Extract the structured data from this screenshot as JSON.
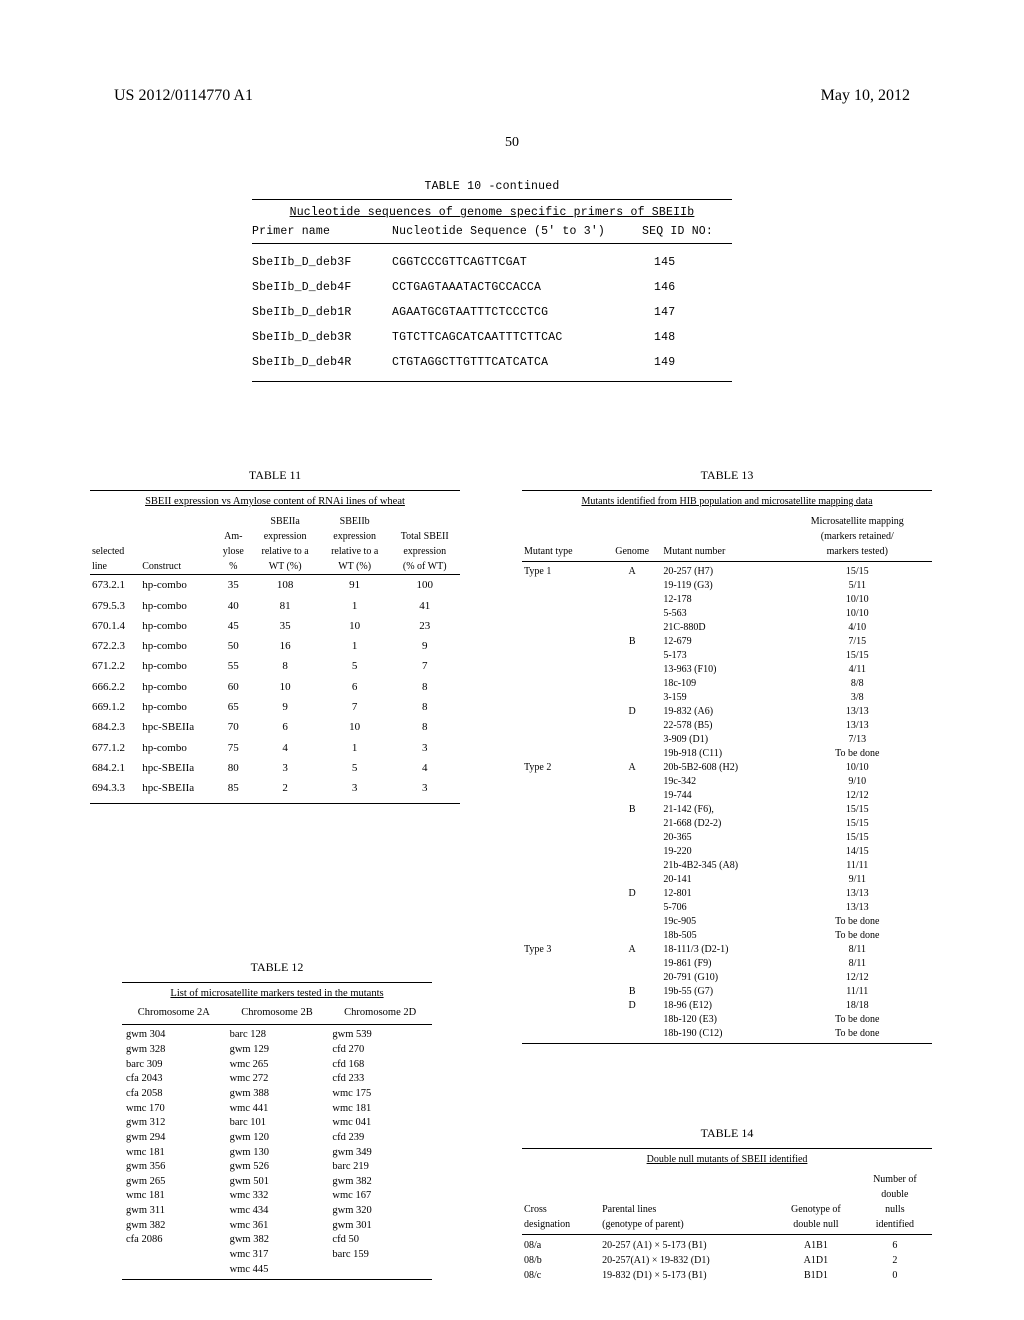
{
  "header": {
    "left": "US 2012/0114770 A1",
    "right": "May 10, 2012",
    "page_number": "50"
  },
  "table10": {
    "title": "TABLE 10 -continued",
    "subtitle": "Nucleotide sequences of genome specific primers of SBEIIb",
    "columns": {
      "c1": "Primer name",
      "c2": "Nucleotide Sequence (5' to 3')",
      "c3": "SEQ ID NO:"
    },
    "rows": [
      {
        "name": "SbeIIb_D_deb3F",
        "seq": "CGGTCCCGTTCAGTTCGAT",
        "id": "145"
      },
      {
        "name": "SbeIIb_D_deb4F",
        "seq": "CCTGAGTAAATACTGCCACCA",
        "id": "146"
      },
      {
        "name": "SbeIIb_D_deb1R",
        "seq": "AGAATGCGTAATTTCTCCCTCG",
        "id": "147"
      },
      {
        "name": "SbeIIb_D_deb3R",
        "seq": "TGTCTTCAGCATCAATTTCTTCAC",
        "id": "148"
      },
      {
        "name": "SbeIIb_D_deb4R",
        "seq": "CTGTAGGCTTGTTTCATCATCA",
        "id": "149"
      }
    ]
  },
  "table11": {
    "caption": "TABLE 11",
    "subtitle": "SBEII expression vs Amylose content of RNAi lines of wheat",
    "header_row1": [
      "",
      "",
      "",
      "SBEIIa",
      "SBEIIb",
      ""
    ],
    "header_row2": [
      "",
      "",
      "Am-",
      "expression",
      "expression",
      "Total SBEII"
    ],
    "header_row3": [
      "selected",
      "",
      "ylose",
      "relative to a",
      "relative to a",
      "expression"
    ],
    "header_row4": [
      "line",
      "Construct",
      "%",
      "WT (%)",
      "WT (%)",
      "(% of WT)"
    ],
    "rows": [
      [
        "673.2.1",
        "hp-combo",
        "35",
        "108",
        "91",
        "100"
      ],
      [
        "679.5.3",
        "hp-combo",
        "40",
        "81",
        "1",
        "41"
      ],
      [
        "670.1.4",
        "hp-combo",
        "45",
        "35",
        "10",
        "23"
      ],
      [
        "672.2.3",
        "hp-combo",
        "50",
        "16",
        "1",
        "9"
      ],
      [
        "671.2.2",
        "hp-combo",
        "55",
        "8",
        "5",
        "7"
      ],
      [
        "666.2.2",
        "hp-combo",
        "60",
        "10",
        "6",
        "8"
      ],
      [
        "669.1.2",
        "hp-combo",
        "65",
        "9",
        "7",
        "8"
      ],
      [
        "684.2.3",
        "hpc-SBEIIa",
        "70",
        "6",
        "10",
        "8"
      ],
      [
        "677.1.2",
        "hp-combo",
        "75",
        "4",
        "1",
        "3"
      ],
      [
        "684.2.1",
        "hpc-SBEIIa",
        "80",
        "3",
        "5",
        "4"
      ],
      [
        "694.3.3",
        "hpc-SBEIIa",
        "85",
        "2",
        "3",
        "3"
      ]
    ]
  },
  "table12": {
    "caption": "TABLE 12",
    "subtitle": "List of microsatellite markers tested in the mutants",
    "columns": [
      "Chromosome 2A",
      "Chromosome 2B",
      "Chromosome 2D"
    ],
    "rows": [
      [
        "gwm 304",
        "barc 128",
        "gwm 539"
      ],
      [
        "gwm 328",
        "gwm 129",
        "cfd 270"
      ],
      [
        "barc 309",
        "wmc 265",
        "cfd 168"
      ],
      [
        "cfa 2043",
        "wmc 272",
        "cfd 233"
      ],
      [
        "cfa 2058",
        "gwm 388",
        "wmc 175"
      ],
      [
        "wmc 170",
        "wmc 441",
        "wmc 181"
      ],
      [
        "gwm 312",
        "barc 101",
        "wmc 041"
      ],
      [
        "gwm 294",
        "gwm 120",
        "cfd 239"
      ],
      [
        "wmc 181",
        "gwm 130",
        "gwm 349"
      ],
      [
        "gwm 356",
        "gwm 526",
        "barc 219"
      ],
      [
        "gwm 265",
        "gwm 501",
        "gwm 382"
      ],
      [
        "wmc 181",
        "wmc 332",
        "wmc 167"
      ],
      [
        "gwm 311",
        "wmc 434",
        "gwm 320"
      ],
      [
        "gwm 382",
        "wmc 361",
        "gwm 301"
      ],
      [
        "cfa 2086",
        "gwm 382",
        "cfd 50"
      ],
      [
        "",
        "wmc 317",
        "barc 159"
      ],
      [
        "",
        "wmc 445",
        ""
      ]
    ]
  },
  "table13": {
    "caption": "TABLE 13",
    "subtitle": "Mutants identified from HIB population and microsatellite mapping data",
    "header_row1": [
      "",
      "",
      "",
      "Microsatellite mapping"
    ],
    "header_row2": [
      "",
      "",
      "",
      "(markers retained/"
    ],
    "header_row3": [
      "Mutant type",
      "Genome",
      "Mutant number",
      "markers tested)"
    ],
    "rows": [
      [
        "Type 1",
        "A",
        "20-257 (H7)",
        "15/15"
      ],
      [
        "",
        "",
        "19-119 (G3)",
        "5/11"
      ],
      [
        "",
        "",
        "12-178",
        "10/10"
      ],
      [
        "",
        "",
        "5-563",
        "10/10"
      ],
      [
        "",
        "",
        "21C-880D",
        "4/10"
      ],
      [
        "",
        "B",
        "12-679",
        "7/15"
      ],
      [
        "",
        "",
        "5-173",
        "15/15"
      ],
      [
        "",
        "",
        "13-963 (F10)",
        "4/11"
      ],
      [
        "",
        "",
        "18c-109",
        "8/8"
      ],
      [
        "",
        "",
        "3-159",
        "3/8"
      ],
      [
        "",
        "D",
        "19-832 (A6)",
        "13/13"
      ],
      [
        "",
        "",
        "22-578 (B5)",
        "13/13"
      ],
      [
        "",
        "",
        "3-909 (D1)",
        "7/13"
      ],
      [
        "",
        "",
        "19b-918 (C11)",
        "To be done"
      ],
      [
        "Type 2",
        "A",
        "20b-5B2-608 (H2)",
        "10/10"
      ],
      [
        "",
        "",
        "19c-342",
        "9/10"
      ],
      [
        "",
        "",
        "19-744",
        "12/12"
      ],
      [
        "",
        "B",
        "21-142 (F6),",
        "15/15"
      ],
      [
        "",
        "",
        "21-668 (D2-2)",
        "15/15"
      ],
      [
        "",
        "",
        "20-365",
        "15/15"
      ],
      [
        "",
        "",
        "19-220",
        "14/15"
      ],
      [
        "",
        "",
        "21b-4B2-345 (A8)",
        "11/11"
      ],
      [
        "",
        "",
        "20-141",
        "9/11"
      ],
      [
        "",
        "D",
        "12-801",
        "13/13"
      ],
      [
        "",
        "",
        "5-706",
        "13/13"
      ],
      [
        "",
        "",
        "19c-905",
        "To be done"
      ],
      [
        "",
        "",
        "18b-505",
        "To be done"
      ],
      [
        "Type 3",
        "A",
        "18-111/3 (D2-1)",
        "8/11"
      ],
      [
        "",
        "",
        "19-861 (F9)",
        "8/11"
      ],
      [
        "",
        "",
        "20-791 (G10)",
        "12/12"
      ],
      [
        "",
        "B",
        "19b-55 (G7)",
        "11/11"
      ],
      [
        "",
        "D",
        "18-96 (E12)",
        "18/18"
      ],
      [
        "",
        "",
        "18b-120 (E3)",
        "To be done"
      ],
      [
        "",
        "",
        "18b-190 (C12)",
        "To be done"
      ]
    ]
  },
  "table14": {
    "caption": "TABLE 14",
    "subtitle": "Double null mutants of SBEII identified",
    "header_row1": [
      "",
      "",
      "",
      "Number of"
    ],
    "header_row2": [
      "",
      "",
      "",
      "double"
    ],
    "header_row3": [
      "Cross",
      "Parental lines",
      "Genotype of",
      "nulls"
    ],
    "header_row4": [
      "designation",
      "(genotype of parent)",
      "double null",
      "identified"
    ],
    "rows": [
      [
        "08/a",
        "20-257 (A1) × 5-173 (B1)",
        "A1B1",
        "6"
      ],
      [
        "08/b",
        "20-257(A1) × 19-832 (D1)",
        "A1D1",
        "2"
      ],
      [
        "08/c",
        "19-832 (D1) × 5-173 (B1)",
        "B1D1",
        "0"
      ]
    ]
  }
}
